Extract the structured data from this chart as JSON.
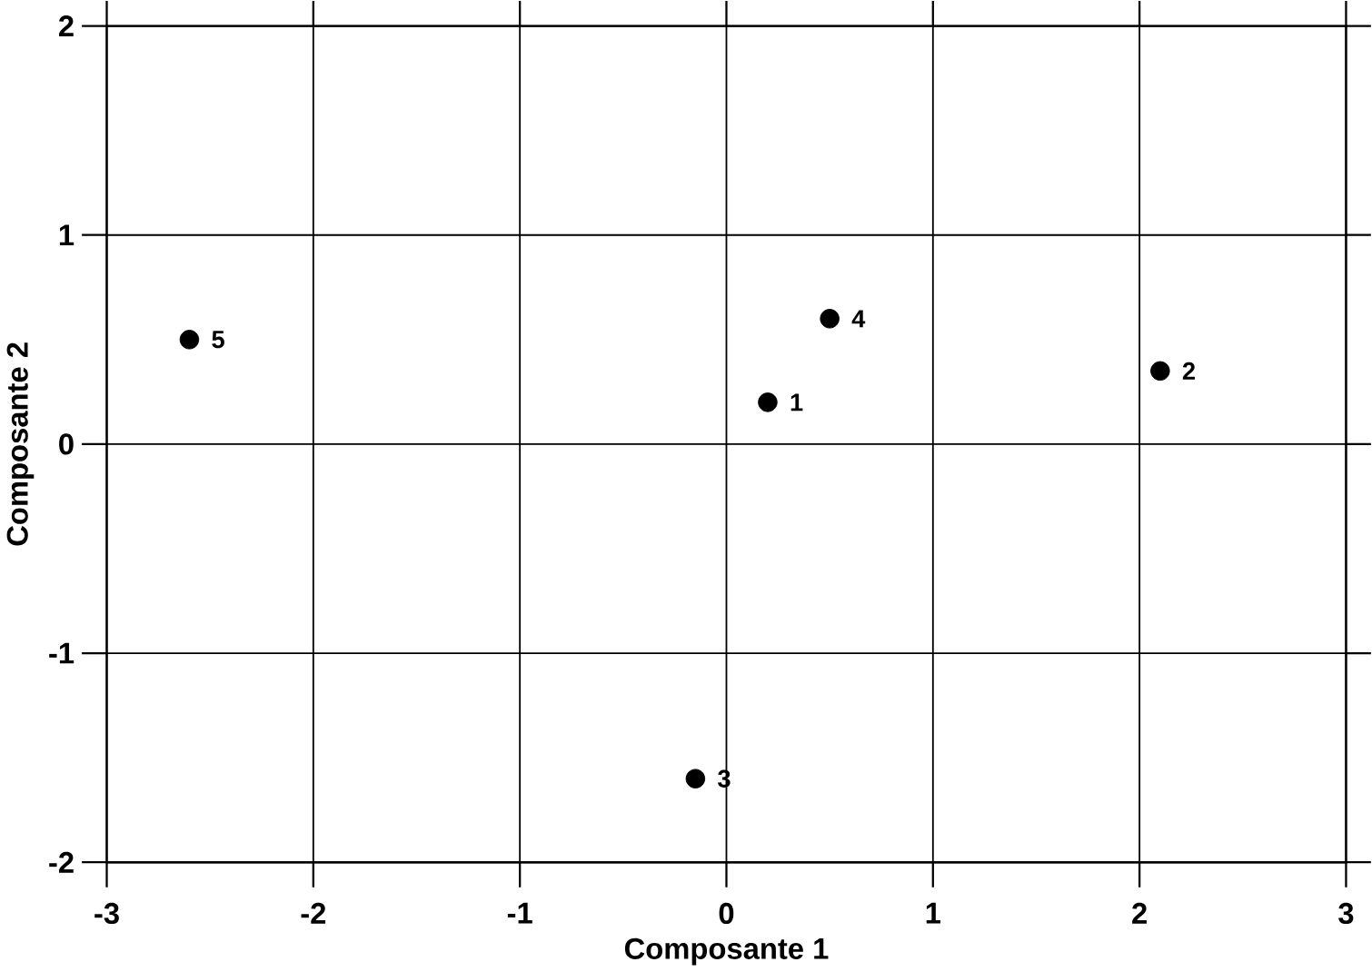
{
  "chart_data": {
    "type": "scatter",
    "xlabel": "Composante 1",
    "ylabel": "Composante 2",
    "x": [
      0.2,
      2.1,
      -0.15,
      0.5,
      -2.6
    ],
    "values": [
      0.2,
      0.35,
      -1.6,
      0.6,
      0.5
    ],
    "color": "#000000",
    "marker": "circle",
    "grid": true,
    "xlim": [
      -3,
      3
    ],
    "ylim": [
      -2,
      2
    ],
    "xticks": [
      -3,
      -2,
      -1,
      0,
      1,
      2,
      3
    ],
    "yticks": [
      -2,
      -1,
      0,
      1,
      2
    ],
    "annotations": [
      {
        "text": "1",
        "x": 0.2,
        "y": 0.2
      },
      {
        "text": "2",
        "x": 2.1,
        "y": 0.35
      },
      {
        "text": "3",
        "x": -0.15,
        "y": -1.6
      },
      {
        "text": "4",
        "x": 0.5,
        "y": 0.6
      },
      {
        "text": "5",
        "x": -2.6,
        "y": 0.5
      }
    ]
  }
}
